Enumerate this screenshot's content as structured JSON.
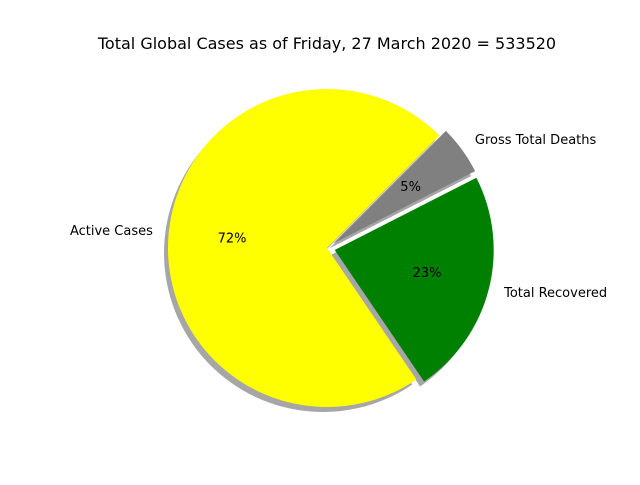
{
  "chart_data": {
    "type": "pie",
    "title": "Total Global Cases as of Friday, 27 March 2020 = 533520",
    "slices": [
      {
        "label": "Active Cases",
        "percent_label": "72%",
        "value": 72,
        "color": "#ffff00",
        "exploded": false
      },
      {
        "label": "Total Recovered",
        "percent_label": "23%",
        "value": 23,
        "color": "#008000",
        "exploded": true
      },
      {
        "label": "Gross Total Deaths",
        "percent_label": "5%",
        "value": 5,
        "color": "#808080",
        "exploded": true
      }
    ],
    "shadow": true,
    "legend": "none"
  }
}
